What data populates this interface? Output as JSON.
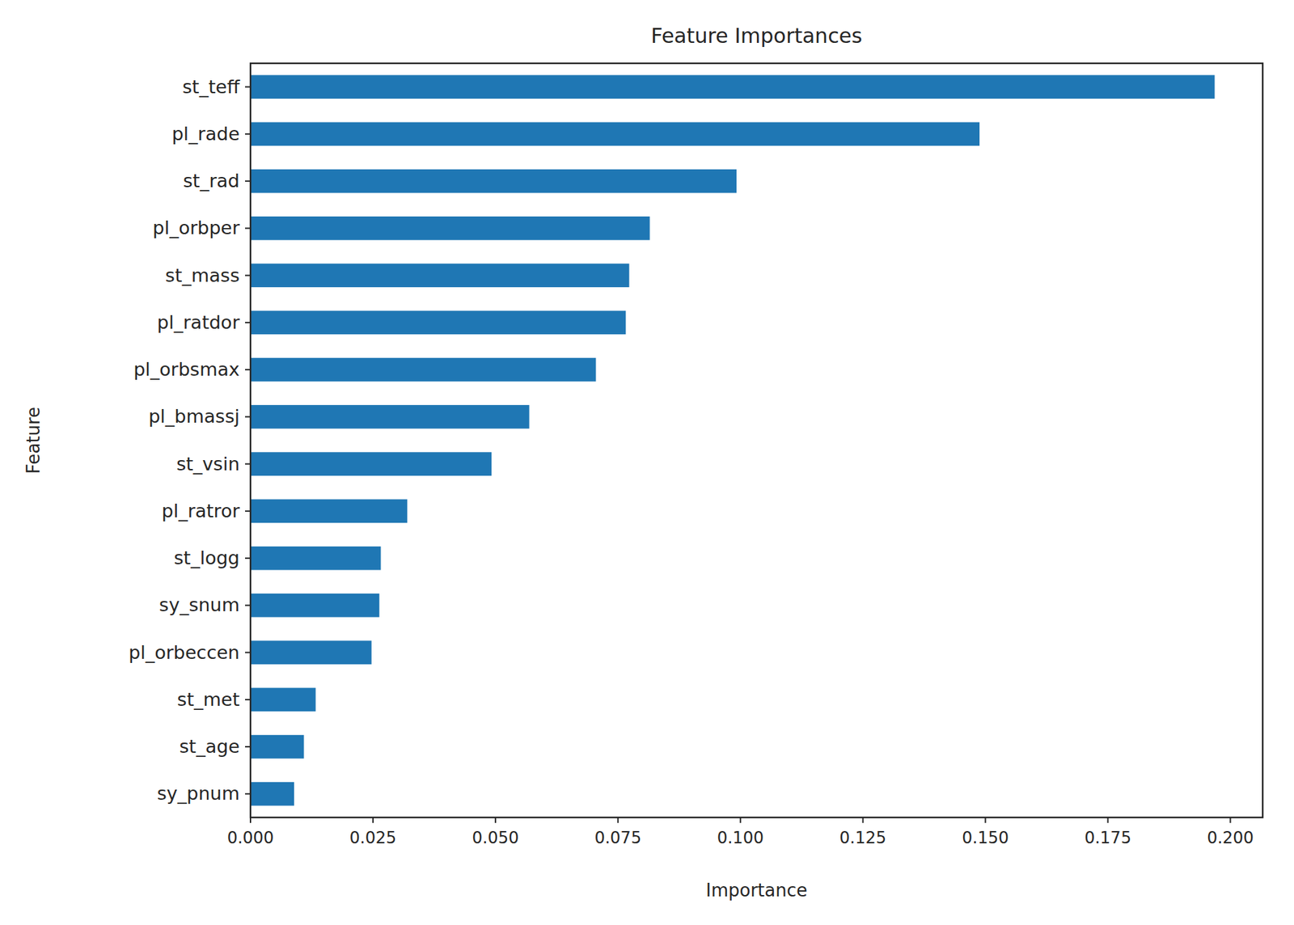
{
  "chart_data": {
    "type": "bar",
    "orientation": "horizontal",
    "title": "Feature Importances",
    "x_label": "Importance",
    "y_label": "Feature",
    "categories": [
      "st_teff",
      "pl_rade",
      "st_rad",
      "pl_orbper",
      "st_mass",
      "pl_ratdor",
      "pl_orbsmax",
      "pl_bmassj",
      "st_vsin",
      "pl_ratror",
      "st_logg",
      "sy_snum",
      "pl_orbeccen",
      "st_met",
      "st_age",
      "sy_pnum"
    ],
    "values": [
      0.1968,
      0.1488,
      0.0992,
      0.0815,
      0.0773,
      0.0766,
      0.0705,
      0.0569,
      0.0492,
      0.032,
      0.0266,
      0.0263,
      0.0247,
      0.0133,
      0.0109,
      0.0089
    ],
    "color": "#1f77b4",
    "xlim": [
      0,
      0.2066
    ],
    "xticks": [
      {
        "value": 0,
        "label": "0.000"
      },
      {
        "value": 0.025,
        "label": "0.025"
      },
      {
        "value": 0.05,
        "label": "0.050"
      },
      {
        "value": 0.075,
        "label": "0.075"
      },
      {
        "value": 0.1,
        "label": "0.100"
      },
      {
        "value": 0.125,
        "label": "0.125"
      },
      {
        "value": 0.15,
        "label": "0.150"
      },
      {
        "value": 0.175,
        "label": "0.175"
      },
      {
        "value": 0.2,
        "label": "0.200"
      }
    ],
    "grid": false
  }
}
